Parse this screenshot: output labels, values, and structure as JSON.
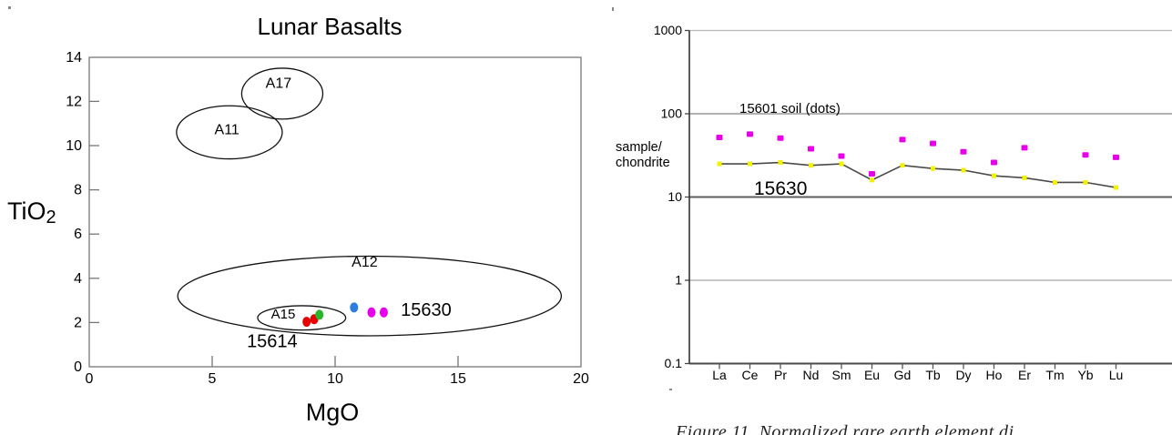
{
  "caption": "Figure 11.  Normalized rare earth element di",
  "chart_data": [
    {
      "type": "scatter",
      "title": "Lunar Basalts",
      "xlabel": "MgO",
      "ylabel_main": "TiO",
      "ylabel_sub": "2",
      "xlim": [
        0,
        20
      ],
      "ylim": [
        0,
        14
      ],
      "xticks": [
        0,
        5,
        10,
        15,
        20
      ],
      "yticks": [
        0,
        2,
        4,
        6,
        8,
        10,
        12,
        14
      ],
      "grid": false,
      "legend": "none",
      "ellipse_fields": [
        {
          "label": "A17",
          "cx": 7.85,
          "cy": 12.35,
          "rx": 1.65,
          "ry": 1.15,
          "label_x": 7.7,
          "label_y": 12.84
        },
        {
          "label": "A11",
          "cx": 5.7,
          "cy": 10.6,
          "rx": 2.15,
          "ry": 1.2,
          "label_x": 5.6,
          "label_y": 10.74
        },
        {
          "label": "A12",
          "cx": 11.4,
          "cy": 3.2,
          "rx": 7.8,
          "ry": 1.8,
          "label_x": 11.2,
          "label_y": 4.75
        },
        {
          "label": "A15",
          "cx": 8.64,
          "cy": 2.21,
          "rx": 1.79,
          "ry": 0.55,
          "label_x": 7.89,
          "label_y": 2.39
        }
      ],
      "points": [
        {
          "sample": "15614",
          "color": "#e60000",
          "mgo": 8.84,
          "tio2": 2.03
        },
        {
          "sample": "15614",
          "color": "#e60000",
          "mgo": 9.15,
          "tio2": 2.15
        },
        {
          "sample": "15614",
          "color": "#28b628",
          "mgo": 9.36,
          "tio2": 2.35
        },
        {
          "sample": "15630",
          "color": "#2b7de0",
          "mgo": 10.77,
          "tio2": 2.68
        },
        {
          "sample": "15630",
          "color": "#e800e8",
          "mgo": 11.48,
          "tio2": 2.46
        },
        {
          "sample": "15630",
          "color": "#e800e8",
          "mgo": 11.98,
          "tio2": 2.46
        }
      ],
      "annotations": [
        {
          "text": "15614",
          "x": 7.44,
          "y": 1.17,
          "anchor": "middle",
          "size": 20
        },
        {
          "text": "15630",
          "x": 12.67,
          "y": 2.6,
          "anchor": "start",
          "size": 20
        }
      ]
    },
    {
      "type": "line",
      "title": "",
      "ylabel_lines": [
        "sample/",
        "chondrite"
      ],
      "categories": [
        "La",
        "Ce",
        "Pr",
        "Nd",
        "Sm",
        "Eu",
        "Gd",
        "Tb",
        "Dy",
        "Ho",
        "Er",
        "Tm",
        "Yb",
        "Lu"
      ],
      "yscale": "log",
      "ylim": [
        0.1,
        1000
      ],
      "yticks": [
        1000,
        100,
        10,
        1,
        0.1
      ],
      "grid": true,
      "series": [
        {
          "name": "15601 soil (dots)",
          "style": "dots",
          "color": "#e800e8",
          "values": [
            52,
            57,
            51,
            38,
            31,
            19,
            49,
            44,
            35,
            26,
            39,
            null,
            32,
            30
          ]
        },
        {
          "name": "15630",
          "style": "line-markers",
          "color": "#4a4a4a",
          "marker_color": "#f2f200",
          "values": [
            25,
            25,
            26,
            24,
            25,
            16,
            24,
            22,
            21,
            18,
            17,
            15,
            15,
            13
          ]
        }
      ],
      "annotations": [
        {
          "text": "15601 soil (dots)",
          "x": 152,
          "y": 124,
          "size": 15
        },
        {
          "text": "15630",
          "x": 168,
          "y": 214,
          "size": 21
        }
      ]
    }
  ]
}
